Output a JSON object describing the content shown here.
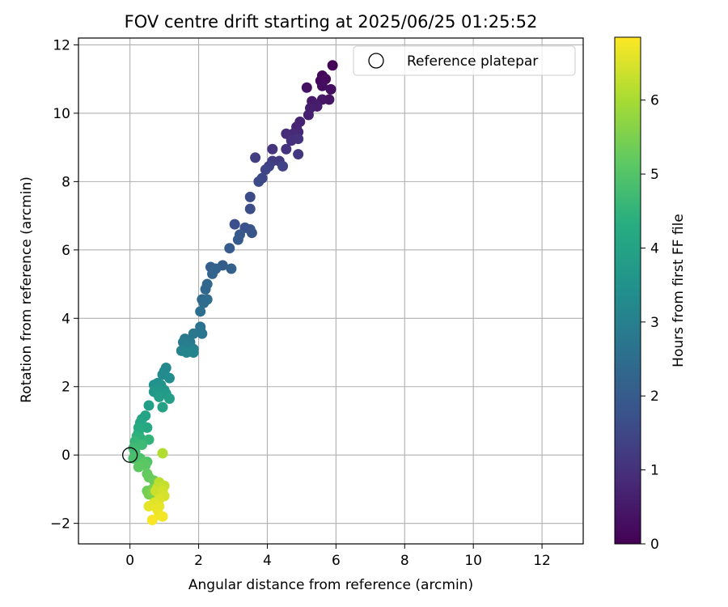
{
  "chart_data": {
    "type": "scatter",
    "title": "FOV centre drift starting at 2025/06/25 01:25:52",
    "xlabel": "Angular distance from reference (arcmin)",
    "ylabel": "Rotation from reference (arcmin)",
    "xlim": [
      -1.5,
      13.2
    ],
    "ylim": [
      -2.6,
      12.2
    ],
    "xticks": [
      0,
      2,
      4,
      6,
      8,
      10,
      12
    ],
    "yticks": [
      -2,
      0,
      2,
      4,
      6,
      8,
      10,
      12
    ],
    "grid": true,
    "legend": {
      "position": "top-right",
      "entries": [
        "Reference platepar"
      ]
    },
    "reference_point": {
      "x": 0,
      "y": 0,
      "label": "Reference platepar"
    },
    "colorbar": {
      "label": "Hours from first FF file",
      "range": [
        0,
        6.85
      ],
      "ticks": [
        0,
        1,
        2,
        3,
        4,
        5,
        6
      ],
      "colormap": "viridis"
    },
    "series": [
      {
        "points": [
          {
            "x": 5.9,
            "y": 11.4,
            "t": 0.05
          },
          {
            "x": 5.6,
            "y": 11.1,
            "t": 0.1
          },
          {
            "x": 5.55,
            "y": 10.95,
            "t": 0.15
          },
          {
            "x": 5.7,
            "y": 11.0,
            "t": 0.2
          },
          {
            "x": 5.6,
            "y": 10.8,
            "t": 0.25
          },
          {
            "x": 5.85,
            "y": 10.7,
            "t": 0.3
          },
          {
            "x": 5.15,
            "y": 10.75,
            "t": 0.35
          },
          {
            "x": 5.8,
            "y": 10.4,
            "t": 0.4
          },
          {
            "x": 5.6,
            "y": 10.4,
            "t": 0.45
          },
          {
            "x": 5.3,
            "y": 10.35,
            "t": 0.5
          },
          {
            "x": 5.45,
            "y": 10.2,
            "t": 0.55
          },
          {
            "x": 5.25,
            "y": 10.15,
            "t": 0.6
          },
          {
            "x": 5.2,
            "y": 9.95,
            "t": 0.65
          },
          {
            "x": 4.95,
            "y": 9.75,
            "t": 0.7
          },
          {
            "x": 4.85,
            "y": 9.6,
            "t": 0.75
          },
          {
            "x": 4.9,
            "y": 9.45,
            "t": 0.8
          },
          {
            "x": 4.75,
            "y": 9.4,
            "t": 0.85
          },
          {
            "x": 4.55,
            "y": 9.4,
            "t": 0.9
          },
          {
            "x": 4.7,
            "y": 9.2,
            "t": 0.95
          },
          {
            "x": 4.9,
            "y": 9.25,
            "t": 1.0
          },
          {
            "x": 4.55,
            "y": 8.95,
            "t": 1.05
          },
          {
            "x": 4.15,
            "y": 8.95,
            "t": 1.1
          },
          {
            "x": 4.9,
            "y": 8.8,
            "t": 1.15
          },
          {
            "x": 4.35,
            "y": 8.6,
            "t": 1.2
          },
          {
            "x": 4.15,
            "y": 8.6,
            "t": 1.25
          },
          {
            "x": 3.65,
            "y": 8.7,
            "t": 1.3
          },
          {
            "x": 4.05,
            "y": 8.45,
            "t": 1.35
          },
          {
            "x": 4.45,
            "y": 8.45,
            "t": 1.4
          },
          {
            "x": 3.95,
            "y": 8.35,
            "t": 1.45
          },
          {
            "x": 3.85,
            "y": 8.1,
            "t": 1.5
          },
          {
            "x": 3.75,
            "y": 8.0,
            "t": 1.55
          },
          {
            "x": 3.5,
            "y": 7.55,
            "t": 1.6
          },
          {
            "x": 3.5,
            "y": 7.2,
            "t": 1.65
          },
          {
            "x": 3.05,
            "y": 6.75,
            "t": 1.7
          },
          {
            "x": 3.35,
            "y": 6.65,
            "t": 1.75
          },
          {
            "x": 3.5,
            "y": 6.6,
            "t": 1.8
          },
          {
            "x": 3.55,
            "y": 6.5,
            "t": 1.85
          },
          {
            "x": 3.2,
            "y": 6.45,
            "t": 1.9
          },
          {
            "x": 3.15,
            "y": 6.3,
            "t": 1.95
          },
          {
            "x": 2.9,
            "y": 6.05,
            "t": 2.0
          },
          {
            "x": 2.7,
            "y": 5.55,
            "t": 2.05
          },
          {
            "x": 2.35,
            "y": 5.5,
            "t": 2.1
          },
          {
            "x": 2.95,
            "y": 5.45,
            "t": 2.15
          },
          {
            "x": 2.5,
            "y": 5.45,
            "t": 2.2
          },
          {
            "x": 2.4,
            "y": 5.3,
            "t": 2.25
          },
          {
            "x": 2.25,
            "y": 5.0,
            "t": 2.3
          },
          {
            "x": 2.2,
            "y": 4.85,
            "t": 2.35
          },
          {
            "x": 2.1,
            "y": 4.55,
            "t": 2.4
          },
          {
            "x": 2.25,
            "y": 4.55,
            "t": 2.45
          },
          {
            "x": 2.15,
            "y": 4.45,
            "t": 2.5
          },
          {
            "x": 2.05,
            "y": 4.2,
            "t": 2.55
          },
          {
            "x": 2.05,
            "y": 3.75,
            "t": 2.6
          },
          {
            "x": 2.05,
            "y": 3.65,
            "t": 2.65
          },
          {
            "x": 2.1,
            "y": 3.55,
            "t": 2.7
          },
          {
            "x": 1.85,
            "y": 3.55,
            "t": 2.75
          },
          {
            "x": 1.6,
            "y": 3.4,
            "t": 2.8
          },
          {
            "x": 1.75,
            "y": 3.3,
            "t": 2.85
          },
          {
            "x": 1.55,
            "y": 3.3,
            "t": 2.9
          },
          {
            "x": 1.65,
            "y": 3.15,
            "t": 2.95
          },
          {
            "x": 1.85,
            "y": 3.1,
            "t": 3.0
          },
          {
            "x": 1.5,
            "y": 3.05,
            "t": 3.05
          },
          {
            "x": 1.85,
            "y": 3.0,
            "t": 3.1
          },
          {
            "x": 1.65,
            "y": 3.0,
            "t": 3.15
          },
          {
            "x": 1.05,
            "y": 2.55,
            "t": 3.2
          },
          {
            "x": 1.0,
            "y": 2.45,
            "t": 3.25
          },
          {
            "x": 0.95,
            "y": 2.35,
            "t": 3.3
          },
          {
            "x": 1.15,
            "y": 2.25,
            "t": 3.35
          },
          {
            "x": 0.8,
            "y": 2.1,
            "t": 3.4
          },
          {
            "x": 0.7,
            "y": 2.05,
            "t": 3.45
          },
          {
            "x": 0.9,
            "y": 2.05,
            "t": 3.5
          },
          {
            "x": 0.75,
            "y": 1.95,
            "t": 3.55
          },
          {
            "x": 1.0,
            "y": 1.9,
            "t": 3.6
          },
          {
            "x": 0.7,
            "y": 1.85,
            "t": 3.65
          },
          {
            "x": 0.8,
            "y": 1.8,
            "t": 3.7
          },
          {
            "x": 1.05,
            "y": 1.8,
            "t": 3.75
          },
          {
            "x": 0.85,
            "y": 1.7,
            "t": 3.8
          },
          {
            "x": 1.15,
            "y": 1.65,
            "t": 3.85
          },
          {
            "x": 0.55,
            "y": 1.45,
            "t": 3.9
          },
          {
            "x": 0.95,
            "y": 1.4,
            "t": 3.95
          },
          {
            "x": 0.45,
            "y": 1.15,
            "t": 4.0
          },
          {
            "x": 0.35,
            "y": 1.05,
            "t": 4.05
          },
          {
            "x": 0.3,
            "y": 0.95,
            "t": 4.1
          },
          {
            "x": 0.5,
            "y": 0.8,
            "t": 4.2
          },
          {
            "x": 0.25,
            "y": 0.8,
            "t": 4.25
          },
          {
            "x": 0.25,
            "y": 0.65,
            "t": 4.3
          },
          {
            "x": 0.2,
            "y": 0.55,
            "t": 4.4
          },
          {
            "x": 0.3,
            "y": 0.5,
            "t": 4.45
          },
          {
            "x": 0.55,
            "y": 0.45,
            "t": 4.5
          },
          {
            "x": 0.15,
            "y": 0.4,
            "t": 4.55
          },
          {
            "x": 0.2,
            "y": 0.3,
            "t": 4.6
          },
          {
            "x": 0.35,
            "y": 0.3,
            "t": 4.65
          },
          {
            "x": 0.1,
            "y": 0.2,
            "t": 4.7
          },
          {
            "x": 0.15,
            "y": 0.1,
            "t": 4.75
          },
          {
            "x": 0.15,
            "y": -0.05,
            "t": 4.8
          },
          {
            "x": 0.1,
            "y": -0.1,
            "t": 4.85
          },
          {
            "x": 0.3,
            "y": -0.1,
            "t": 4.9
          },
          {
            "x": 0.35,
            "y": -0.2,
            "t": 4.95
          },
          {
            "x": 0.5,
            "y": -0.2,
            "t": 5.0
          },
          {
            "x": 0.4,
            "y": -0.25,
            "t": 5.05
          },
          {
            "x": 0.45,
            "y": -0.3,
            "t": 5.1
          },
          {
            "x": 0.25,
            "y": -0.35,
            "t": 5.15
          },
          {
            "x": 0.5,
            "y": -0.55,
            "t": 5.2
          },
          {
            "x": 0.55,
            "y": -0.65,
            "t": 5.25
          },
          {
            "x": 0.7,
            "y": -0.75,
            "t": 5.3
          },
          {
            "x": 0.5,
            "y": -1.05,
            "t": 5.35
          },
          {
            "x": 0.65,
            "y": -1.0,
            "t": 5.4
          },
          {
            "x": 0.55,
            "y": -1.15,
            "t": 5.45
          },
          {
            "x": 0.65,
            "y": -1.1,
            "t": 5.55
          },
          {
            "x": 0.95,
            "y": 0.05,
            "t": 6.1
          },
          {
            "x": 0.85,
            "y": -0.8,
            "t": 6.2
          },
          {
            "x": 0.8,
            "y": -0.95,
            "t": 6.25
          },
          {
            "x": 1.0,
            "y": -0.9,
            "t": 6.3
          },
          {
            "x": 0.75,
            "y": -1.05,
            "t": 6.35
          },
          {
            "x": 0.95,
            "y": -1.05,
            "t": 6.4
          },
          {
            "x": 1.0,
            "y": -1.2,
            "t": 6.45
          },
          {
            "x": 0.85,
            "y": -1.3,
            "t": 6.5
          },
          {
            "x": 0.7,
            "y": -1.4,
            "t": 6.55
          },
          {
            "x": 0.55,
            "y": -1.5,
            "t": 6.6
          },
          {
            "x": 0.85,
            "y": -1.5,
            "t": 6.6
          },
          {
            "x": 0.8,
            "y": -1.6,
            "t": 6.65
          },
          {
            "x": 0.85,
            "y": -1.75,
            "t": 6.7
          },
          {
            "x": 0.95,
            "y": -1.8,
            "t": 6.75
          },
          {
            "x": 0.65,
            "y": -1.9,
            "t": 6.8
          }
        ]
      }
    ]
  }
}
